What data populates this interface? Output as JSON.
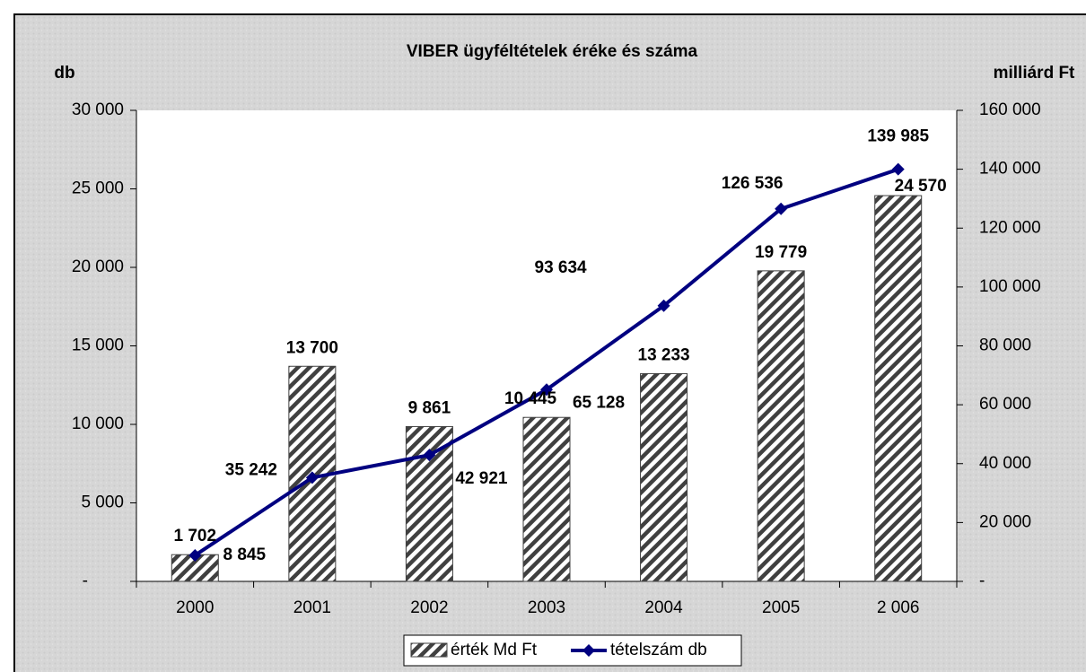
{
  "chart_data": {
    "type": "bar-line",
    "title": "VIBER ügyféltételek éréke és száma",
    "y_label": "db",
    "y2_label": "milliárd Ft",
    "categories": [
      "2000",
      "2001",
      "2002",
      "2003",
      "2004",
      "2005",
      "2 006"
    ],
    "series": [
      {
        "name": "érték Md Ft",
        "type": "bar",
        "color": "#404040",
        "axis": "y",
        "values": [
          1702,
          13700,
          9861,
          10445,
          13233,
          19779,
          24570
        ],
        "value_labels": [
          "1 702",
          "13 700",
          "9 861",
          "10 445",
          "13 233",
          "19 779",
          "24 570"
        ]
      },
      {
        "name": "tételszám db",
        "type": "line",
        "color": "#000080",
        "axis": "y2",
        "values": [
          8845,
          35242,
          42921,
          65128,
          93634,
          126536,
          139985
        ],
        "value_labels": [
          "8 845",
          "35 242",
          "42 921",
          "65 128",
          "93 634",
          "126 536",
          "139 985"
        ]
      }
    ],
    "ylim": [
      0,
      30000
    ],
    "yticks": [
      {
        "value": 0,
        "label": "-"
      },
      {
        "value": 5000,
        "label": "5 000"
      },
      {
        "value": 10000,
        "label": "10 000"
      },
      {
        "value": 15000,
        "label": "15 000"
      },
      {
        "value": 20000,
        "label": "20 000"
      },
      {
        "value": 25000,
        "label": "25 000"
      },
      {
        "value": 30000,
        "label": "30 000"
      }
    ],
    "y2lim": [
      0,
      160000
    ],
    "y2ticks": [
      {
        "value": 0,
        "label": "-"
      },
      {
        "value": 20000,
        "label": "20 000"
      },
      {
        "value": 40000,
        "label": "40 000"
      },
      {
        "value": 60000,
        "label": "60 000"
      },
      {
        "value": 80000,
        "label": "80 000"
      },
      {
        "value": 100000,
        "label": "100 000"
      },
      {
        "value": 120000,
        "label": "120 000"
      },
      {
        "value": 140000,
        "label": "140 000"
      },
      {
        "value": 160000,
        "label": "160 000"
      }
    ],
    "legend": "bottom"
  }
}
